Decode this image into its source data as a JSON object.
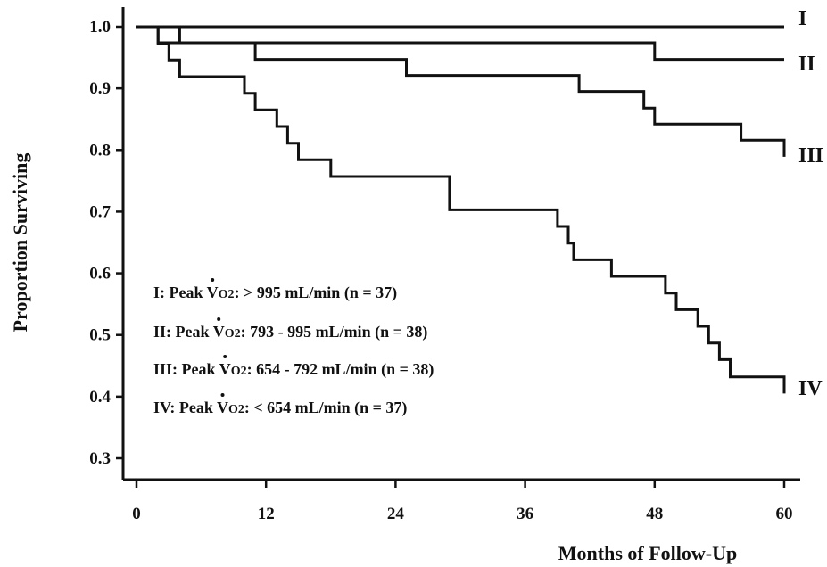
{
  "chart_data": {
    "type": "line",
    "title": "",
    "xlabel": "Months of Follow-Up",
    "ylabel": "Proportion Surviving",
    "xlim": [
      0,
      60
    ],
    "ylim": [
      0.3,
      1.0
    ],
    "x_ticks": [
      "0",
      "12",
      "24",
      "36",
      "48",
      "60"
    ],
    "y_ticks": [
      "0.3",
      "0.4",
      "0.5",
      "0.6",
      "0.7",
      "0.8",
      "0.9",
      "1.0"
    ],
    "grid": false,
    "series": [
      {
        "name": "I",
        "points": [
          [
            0,
            1.0
          ],
          [
            60,
            1.0
          ]
        ]
      },
      {
        "name": "II",
        "points": [
          [
            0,
            1.0
          ],
          [
            4,
            1.0
          ],
          [
            4,
            0.974
          ],
          [
            26,
            0.974
          ],
          [
            26,
            0.974
          ],
          [
            48,
            0.974
          ],
          [
            48,
            0.947
          ],
          [
            60,
            0.947
          ]
        ]
      },
      {
        "name": "III",
        "points": [
          [
            0,
            1.0
          ],
          [
            2,
            1.0
          ],
          [
            2,
            0.974
          ],
          [
            11,
            0.974
          ],
          [
            11,
            0.947
          ],
          [
            25,
            0.947
          ],
          [
            25,
            0.921
          ],
          [
            41,
            0.921
          ],
          [
            41,
            0.895
          ],
          [
            47,
            0.895
          ],
          [
            47,
            0.868
          ],
          [
            48,
            0.868
          ],
          [
            48,
            0.842
          ],
          [
            56,
            0.842
          ],
          [
            56,
            0.816
          ],
          [
            60,
            0.816
          ],
          [
            60,
            0.789
          ]
        ]
      },
      {
        "name": "IV",
        "points": [
          [
            0,
            1.0
          ],
          [
            2,
            1.0
          ],
          [
            2,
            0.973
          ],
          [
            3,
            0.973
          ],
          [
            3,
            0.946
          ],
          [
            4,
            0.946
          ],
          [
            4,
            0.919
          ],
          [
            10,
            0.919
          ],
          [
            10,
            0.892
          ],
          [
            11,
            0.892
          ],
          [
            11,
            0.865
          ],
          [
            13,
            0.865
          ],
          [
            13,
            0.838
          ],
          [
            14,
            0.838
          ],
          [
            14,
            0.811
          ],
          [
            15,
            0.811
          ],
          [
            15,
            0.784
          ],
          [
            18,
            0.784
          ],
          [
            18,
            0.757
          ],
          [
            29,
            0.757
          ],
          [
            29,
            0.703
          ],
          [
            39,
            0.703
          ],
          [
            39,
            0.676
          ],
          [
            40,
            0.676
          ],
          [
            40,
            0.649
          ],
          [
            40.5,
            0.649
          ],
          [
            40.5,
            0.622
          ],
          [
            44,
            0.622
          ],
          [
            44,
            0.595
          ],
          [
            49,
            0.595
          ],
          [
            49,
            0.568
          ],
          [
            50,
            0.568
          ],
          [
            50,
            0.541
          ],
          [
            52,
            0.541
          ],
          [
            52,
            0.514
          ],
          [
            53,
            0.514
          ],
          [
            53,
            0.487
          ],
          [
            54,
            0.487
          ],
          [
            54,
            0.46
          ],
          [
            55,
            0.46
          ],
          [
            55,
            0.432
          ],
          [
            60,
            0.432
          ],
          [
            60,
            0.405
          ]
        ]
      }
    ],
    "legend": [
      {
        "prefix": "I: Peak ",
        "v": "V",
        "sub": "O2",
        "rest": ": > 995 mL/min (n = 37)"
      },
      {
        "prefix": "II: Peak ",
        "v": "V",
        "sub": "O2",
        "rest": ": 793 - 995 mL/min (n = 38)"
      },
      {
        "prefix": "III: Peak ",
        "v": "V",
        "sub": "O2",
        "rest": ": 654 - 792 mL/min (n = 38)"
      },
      {
        "prefix": "IV: Peak ",
        "v": "V",
        "sub": "O2",
        "rest": ": < 654 mL/min (n = 37)"
      }
    ],
    "legend_placement": "lower-left inside"
  }
}
